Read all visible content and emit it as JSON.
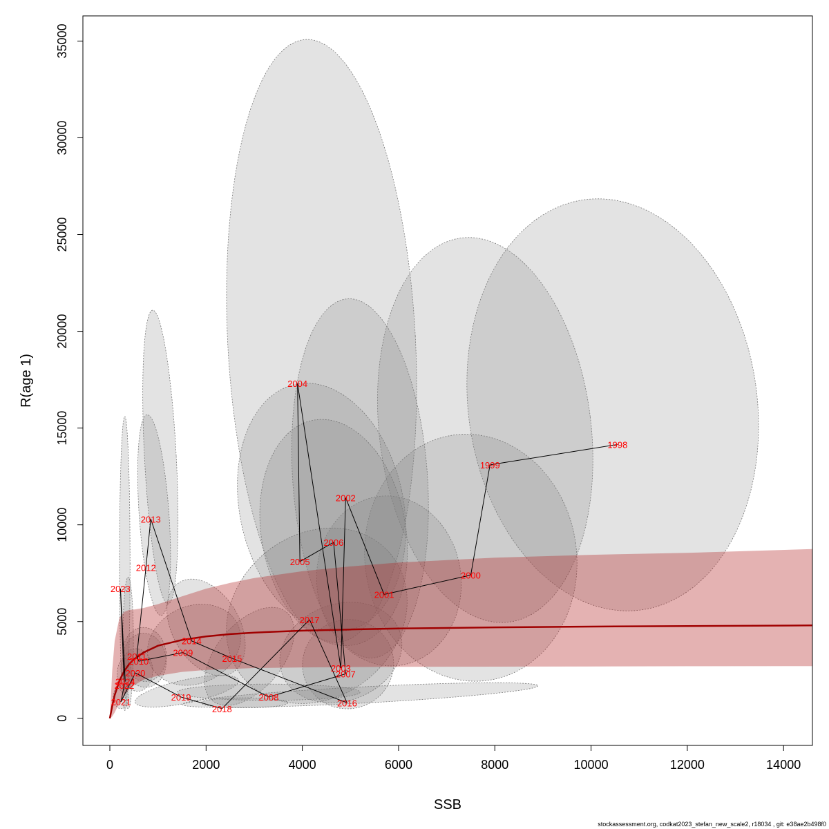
{
  "chart_data": {
    "type": "scatter",
    "title": "",
    "xlabel": "SSB",
    "ylabel": "R(age 1)",
    "xlim": [
      -560,
      14600
    ],
    "ylim": [
      -1400,
      36300
    ],
    "xticks": [
      0,
      2000,
      4000,
      6000,
      8000,
      10000,
      12000,
      14000
    ],
    "yticks": [
      0,
      5000,
      10000,
      15000,
      20000,
      25000,
      30000,
      35000
    ],
    "grid": false,
    "colors": {
      "ellipse_fill": "rgba(128,128,128,0.22)",
      "ellipse_stroke": "#777777",
      "band_fill": "rgba(178,34,34,0.35)",
      "fit_line": "#a00000",
      "path_line": "#000000",
      "year_label": "#ff0000"
    },
    "points": [
      {
        "year": "1998",
        "ssb": 10550,
        "r": 14150
      },
      {
        "year": "1999",
        "ssb": 7900,
        "r": 13100
      },
      {
        "year": "2000",
        "ssb": 7500,
        "r": 7400
      },
      {
        "year": "2001",
        "ssb": 5700,
        "r": 6400
      },
      {
        "year": "2002",
        "ssb": 4900,
        "r": 11400
      },
      {
        "year": "2003",
        "ssb": 4800,
        "r": 2600
      },
      {
        "year": "2004",
        "ssb": 3900,
        "r": 17300
      },
      {
        "year": "2005",
        "ssb": 3950,
        "r": 8100
      },
      {
        "year": "2006",
        "ssb": 4650,
        "r": 9100
      },
      {
        "year": "2007",
        "ssb": 4900,
        "r": 2300
      },
      {
        "year": "2008",
        "ssb": 3300,
        "r": 1100
      },
      {
        "year": "2009",
        "ssb": 1520,
        "r": 3400
      },
      {
        "year": "2010",
        "ssb": 600,
        "r": 2950
      },
      {
        "year": "2011",
        "ssb": 560,
        "r": 3200
      },
      {
        "year": "2012",
        "ssb": 750,
        "r": 7800
      },
      {
        "year": "2013",
        "ssb": 850,
        "r": 10300
      },
      {
        "year": "2014",
        "ssb": 1700,
        "r": 4000
      },
      {
        "year": "2015",
        "ssb": 2540,
        "r": 3100
      },
      {
        "year": "2016",
        "ssb": 4930,
        "r": 800
      },
      {
        "year": "2017",
        "ssb": 4150,
        "r": 5100
      },
      {
        "year": "2018",
        "ssb": 2330,
        "r": 500
      },
      {
        "year": "2019",
        "ssb": 1480,
        "r": 1100
      },
      {
        "year": "2020",
        "ssb": 530,
        "r": 2350
      },
      {
        "year": "2021",
        "ssb": 230,
        "r": 850
      },
      {
        "year": "2022",
        "ssb": 300,
        "r": 1700
      },
      {
        "year": "2023",
        "ssb": 220,
        "r": 6700
      },
      {
        "year": "2024",
        "ssb": 320,
        "r": 1900
      }
    ],
    "confidence_ellipses": [
      {
        "year": "1998",
        "cx": 10450,
        "cy": 16200,
        "rx": 3000,
        "ry": 10700,
        "rot": -8
      },
      {
        "year": "1999",
        "cx": 7800,
        "cy": 14900,
        "rx": 2200,
        "ry": 10000,
        "rot": -7
      },
      {
        "year": "2000",
        "cx": 7500,
        "cy": 8300,
        "rx": 2200,
        "ry": 6400,
        "rot": -8
      },
      {
        "year": "2001",
        "cx": 5800,
        "cy": 7100,
        "rx": 1500,
        "ry": 4400,
        "rot": -6
      },
      {
        "year": "2002",
        "cx": 5200,
        "cy": 12400,
        "rx": 1400,
        "ry": 9300,
        "rot": -4
      },
      {
        "year": "2003",
        "cx": 4800,
        "cy": 3400,
        "rx": 1300,
        "ry": 2500,
        "rot": -20
      },
      {
        "year": "2004",
        "cx": 4400,
        "cy": 19500,
        "rx": 1950,
        "ry": 15600,
        "rot": -3
      },
      {
        "year": "2005",
        "cx": 4400,
        "cy": 10900,
        "rx": 1700,
        "ry": 6500,
        "rot": -12
      },
      {
        "year": "2006",
        "cx": 4650,
        "cy": 9600,
        "rx": 1500,
        "ry": 5900,
        "rot": -10
      },
      {
        "year": "2007",
        "cx": 4950,
        "cy": 2800,
        "rx": 950,
        "ry": 2300,
        "rot": -20
      },
      {
        "year": "2008",
        "cx": 3300,
        "cy": 1350,
        "rx": 1900,
        "ry": 420,
        "rot": 0
      },
      {
        "year": "2009",
        "cx": 1750,
        "cy": 3800,
        "rx": 1000,
        "ry": 2000,
        "rot": -25
      },
      {
        "year": "2010",
        "cx": 720,
        "cy": 3000,
        "rx": 450,
        "ry": 1400,
        "rot": -6
      },
      {
        "year": "2011",
        "cx": 720,
        "cy": 3300,
        "rx": 450,
        "ry": 1400,
        "rot": -6
      },
      {
        "year": "2012",
        "cx": 920,
        "cy": 10500,
        "rx": 310,
        "ry": 5200,
        "rot": -4
      },
      {
        "year": "2013",
        "cx": 1050,
        "cy": 13500,
        "rx": 330,
        "ry": 7600,
        "rot": -3
      },
      {
        "year": "2014",
        "cx": 2000,
        "cy": 4700,
        "rx": 700,
        "ry": 2700,
        "rot": -30
      },
      {
        "year": "2015",
        "cx": 2900,
        "cy": 3200,
        "rx": 1200,
        "ry": 1700,
        "rot": -50
      },
      {
        "year": "2016",
        "cx": 5200,
        "cy": 1200,
        "rx": 3700,
        "ry": 420,
        "rot": -3
      },
      {
        "year": "2017",
        "cx": 4300,
        "cy": 5300,
        "rx": 2000,
        "ry": 4200,
        "rot": -40
      },
      {
        "year": "2018",
        "cx": 2800,
        "cy": 800,
        "rx": 900,
        "ry": 260,
        "rot": 0
      },
      {
        "year": "2019",
        "cx": 1600,
        "cy": 1400,
        "rx": 1100,
        "ry": 600,
        "rot": -12
      },
      {
        "year": "2020",
        "cx": 560,
        "cy": 2500,
        "rx": 330,
        "ry": 1100,
        "rot": -5
      },
      {
        "year": "2021",
        "cx": 230,
        "cy": 1100,
        "rx": 160,
        "ry": 600,
        "rot": 0
      },
      {
        "year": "2022",
        "cx": 300,
        "cy": 2200,
        "rx": 150,
        "ry": 900,
        "rot": 0
      },
      {
        "year": "2023",
        "cx": 310,
        "cy": 8000,
        "rx": 110,
        "ry": 7600,
        "rot": 0
      },
      {
        "year": "2024",
        "cx": 380,
        "cy": 3900,
        "rx": 110,
        "ry": 3400,
        "rot": 0
      }
    ],
    "fit_curve": {
      "x": [
        0,
        50,
        100,
        200,
        300,
        400,
        500,
        700,
        1000,
        1500,
        2000,
        2500,
        3000,
        4000,
        5000,
        6000,
        8000,
        10000,
        12000,
        14600
      ],
      "y": [
        0,
        650,
        1200,
        1950,
        2450,
        2800,
        3050,
        3400,
        3750,
        4050,
        4230,
        4350,
        4430,
        4530,
        4590,
        4640,
        4700,
        4740,
        4770,
        4800
      ],
      "upper": [
        0,
        2500,
        4000,
        5200,
        5500,
        5600,
        5620,
        5700,
        5900,
        6300,
        6700,
        7000,
        7250,
        7600,
        7850,
        8050,
        8300,
        8450,
        8550,
        8750
      ],
      "lower": [
        0,
        100,
        300,
        800,
        1200,
        1500,
        1700,
        2000,
        2200,
        2400,
        2500,
        2550,
        2600,
        2630,
        2650,
        2660,
        2670,
        2680,
        2690,
        2700
      ]
    }
  },
  "footer": "stockassessment.org, codkat2023_stefan_new_scale2, r18034 , git: e38ae2b498f0"
}
